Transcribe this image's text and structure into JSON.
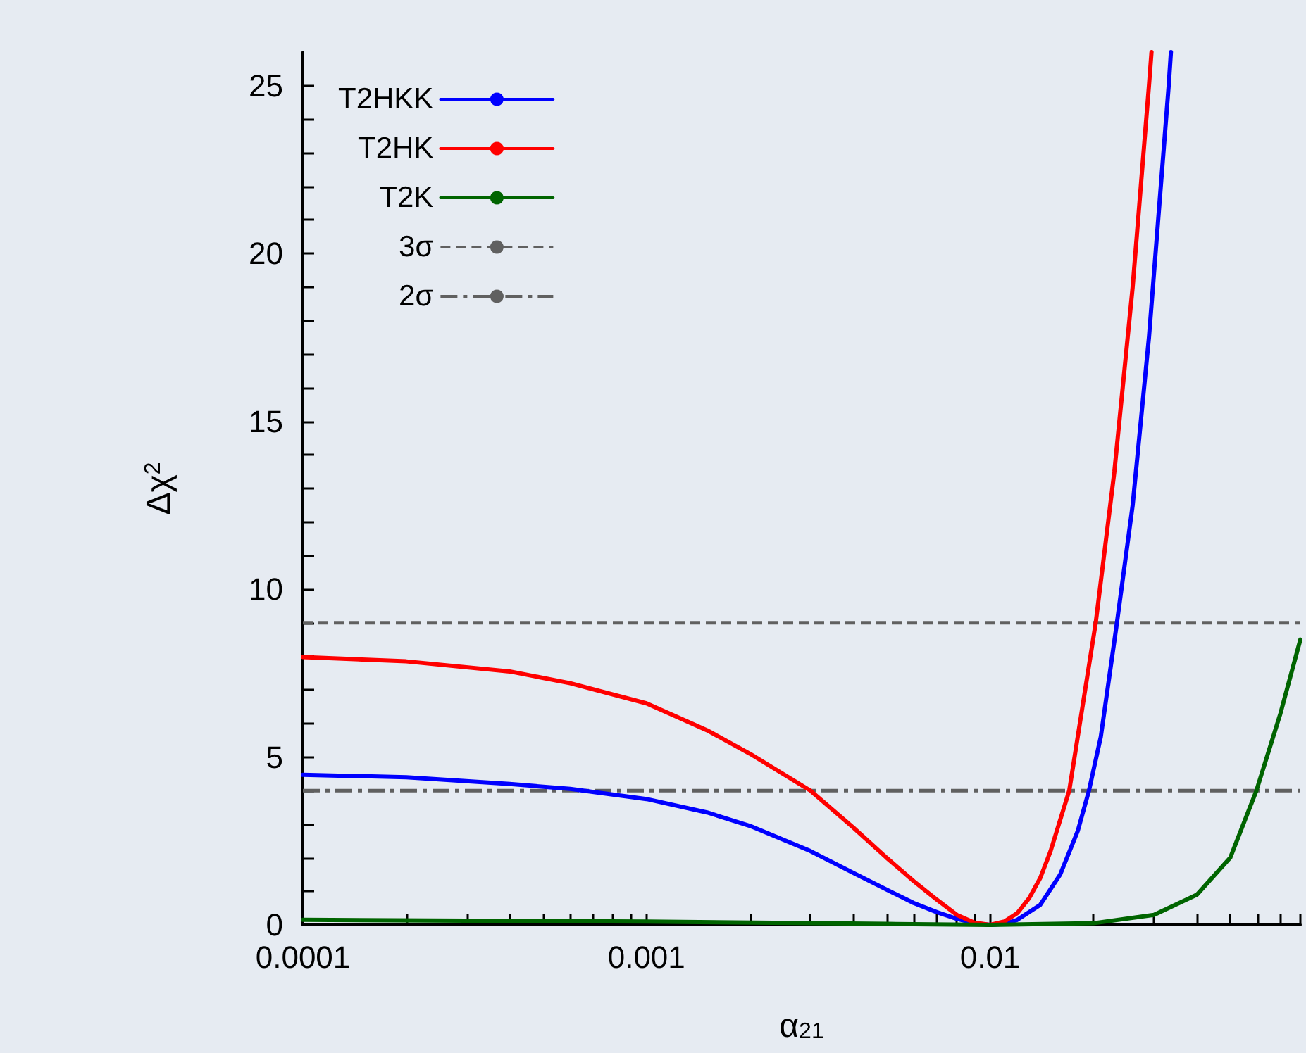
{
  "chart_data": {
    "type": "line",
    "xlabel": "α$_{21}$",
    "ylabel": "Δχ$^{2}$",
    "log": "x",
    "xlim": [
      0.0001,
      0.08
    ],
    "ylim": [
      0,
      26
    ],
    "xticks": [
      0.0001,
      {
        "value": 0.0002,
        "label": null
      },
      {
        "value": 0.0003,
        "label": null
      },
      {
        "value": 0.0004,
        "label": null
      },
      {
        "value": 0.0005,
        "label": null
      },
      {
        "value": 0.0006,
        "label": null
      },
      {
        "value": 0.0007,
        "label": null
      },
      {
        "value": 0.0008,
        "label": null
      },
      {
        "value": 0.0009,
        "label": null
      },
      0.001,
      {
        "value": 0.002,
        "label": null
      },
      {
        "value": 0.003,
        "label": null
      },
      {
        "value": 0.004,
        "label": null
      },
      {
        "value": 0.005,
        "label": null
      },
      {
        "value": 0.006,
        "label": null
      },
      {
        "value": 0.007,
        "label": null
      },
      {
        "value": 0.008,
        "label": null
      },
      {
        "value": 0.009,
        "label": null
      },
      0.01,
      {
        "value": 0.02,
        "label": null
      },
      {
        "value": 0.03,
        "label": null
      },
      {
        "value": 0.04,
        "label": null
      },
      {
        "value": 0.05,
        "label": null
      },
      {
        "value": 0.06,
        "label": null
      },
      {
        "value": 0.07,
        "label": null
      },
      {
        "value": 0.08,
        "label": null
      }
    ],
    "yticks": [
      0,
      {
        "value": 1,
        "label": null
      },
      {
        "value": 2,
        "label": null
      },
      {
        "value": 3,
        "label": null
      },
      {
        "value": 4,
        "label": null
      },
      5,
      {
        "value": 6,
        "label": null
      },
      {
        "value": 7,
        "label": null
      },
      {
        "value": 8,
        "label": null
      },
      {
        "value": 9,
        "label": null
      },
      10,
      {
        "value": 11,
        "label": null
      },
      {
        "value": 12,
        "label": null
      },
      {
        "value": 13,
        "label": null
      },
      {
        "value": 14,
        "label": null
      },
      15,
      {
        "value": 16,
        "label": null
      },
      {
        "value": 17,
        "label": null
      },
      {
        "value": 18,
        "label": null
      },
      {
        "value": 19,
        "label": null
      },
      20,
      {
        "value": 21,
        "label": null
      },
      {
        "value": 22,
        "label": null
      },
      {
        "value": 23,
        "label": null
      },
      {
        "value": 24,
        "label": null
      },
      25
    ],
    "grid": false,
    "legend": "top left",
    "marker": "none",
    "line_style": "solid",
    "series": [
      {
        "name": "T2HKK",
        "color": "#0000ff",
        "x": [
          0.0001,
          0.0002,
          0.0004,
          0.0006,
          0.001,
          0.0015,
          0.002,
          0.003,
          0.004,
          0.005,
          0.006,
          0.007,
          0.008,
          0.009,
          0.01,
          0.011,
          0.012,
          0.014,
          0.016,
          0.018,
          0.0194,
          0.021,
          0.0234,
          0.026,
          0.029,
          0.0331,
          0.0336
        ],
        "values": [
          4.47,
          4.4,
          4.2,
          4.05,
          3.75,
          3.35,
          2.95,
          2.2,
          1.55,
          1.05,
          0.65,
          0.38,
          0.18,
          0.05,
          0,
          0.03,
          0.15,
          0.6,
          1.5,
          2.8,
          4,
          5.6,
          9,
          12.5,
          17.5,
          25,
          26
        ]
      },
      {
        "name": "T2HK",
        "color": "#ff0000",
        "x": [
          0.0001,
          0.0002,
          0.0004,
          0.0006,
          0.001,
          0.0015,
          0.002,
          0.003,
          0.004,
          0.005,
          0.006,
          0.007,
          0.008,
          0.009,
          0.01,
          0.011,
          0.012,
          0.013,
          0.014,
          0.015,
          0.017,
          0.0203,
          0.023,
          0.026,
          0.029,
          0.0295
        ],
        "values": [
          7.98,
          7.85,
          7.55,
          7.2,
          6.6,
          5.8,
          5.1,
          4,
          2.9,
          2,
          1.3,
          0.75,
          0.3,
          0.07,
          0,
          0.1,
          0.35,
          0.8,
          1.4,
          2.2,
          4,
          9,
          13.5,
          19,
          25,
          26
        ]
      },
      {
        "name": "T2K",
        "color": "#006400",
        "x": [
          0.0001,
          0.001,
          0.005,
          0.01,
          0.02,
          0.03,
          0.04,
          0.05,
          0.0596,
          0.07,
          0.08
        ],
        "values": [
          0.15,
          0.1,
          0.03,
          0,
          0.05,
          0.3,
          0.9,
          2,
          4,
          6.3,
          8.5
        ]
      }
    ],
    "ref_lines": [
      {
        "axis": "y",
        "value": 9,
        "label": "3σ",
        "color": "#606060",
        "line_style": "dashed"
      },
      {
        "axis": "y",
        "value": 4,
        "label": "2σ",
        "color": "#606060",
        "line_style": "dashdot"
      }
    ]
  }
}
